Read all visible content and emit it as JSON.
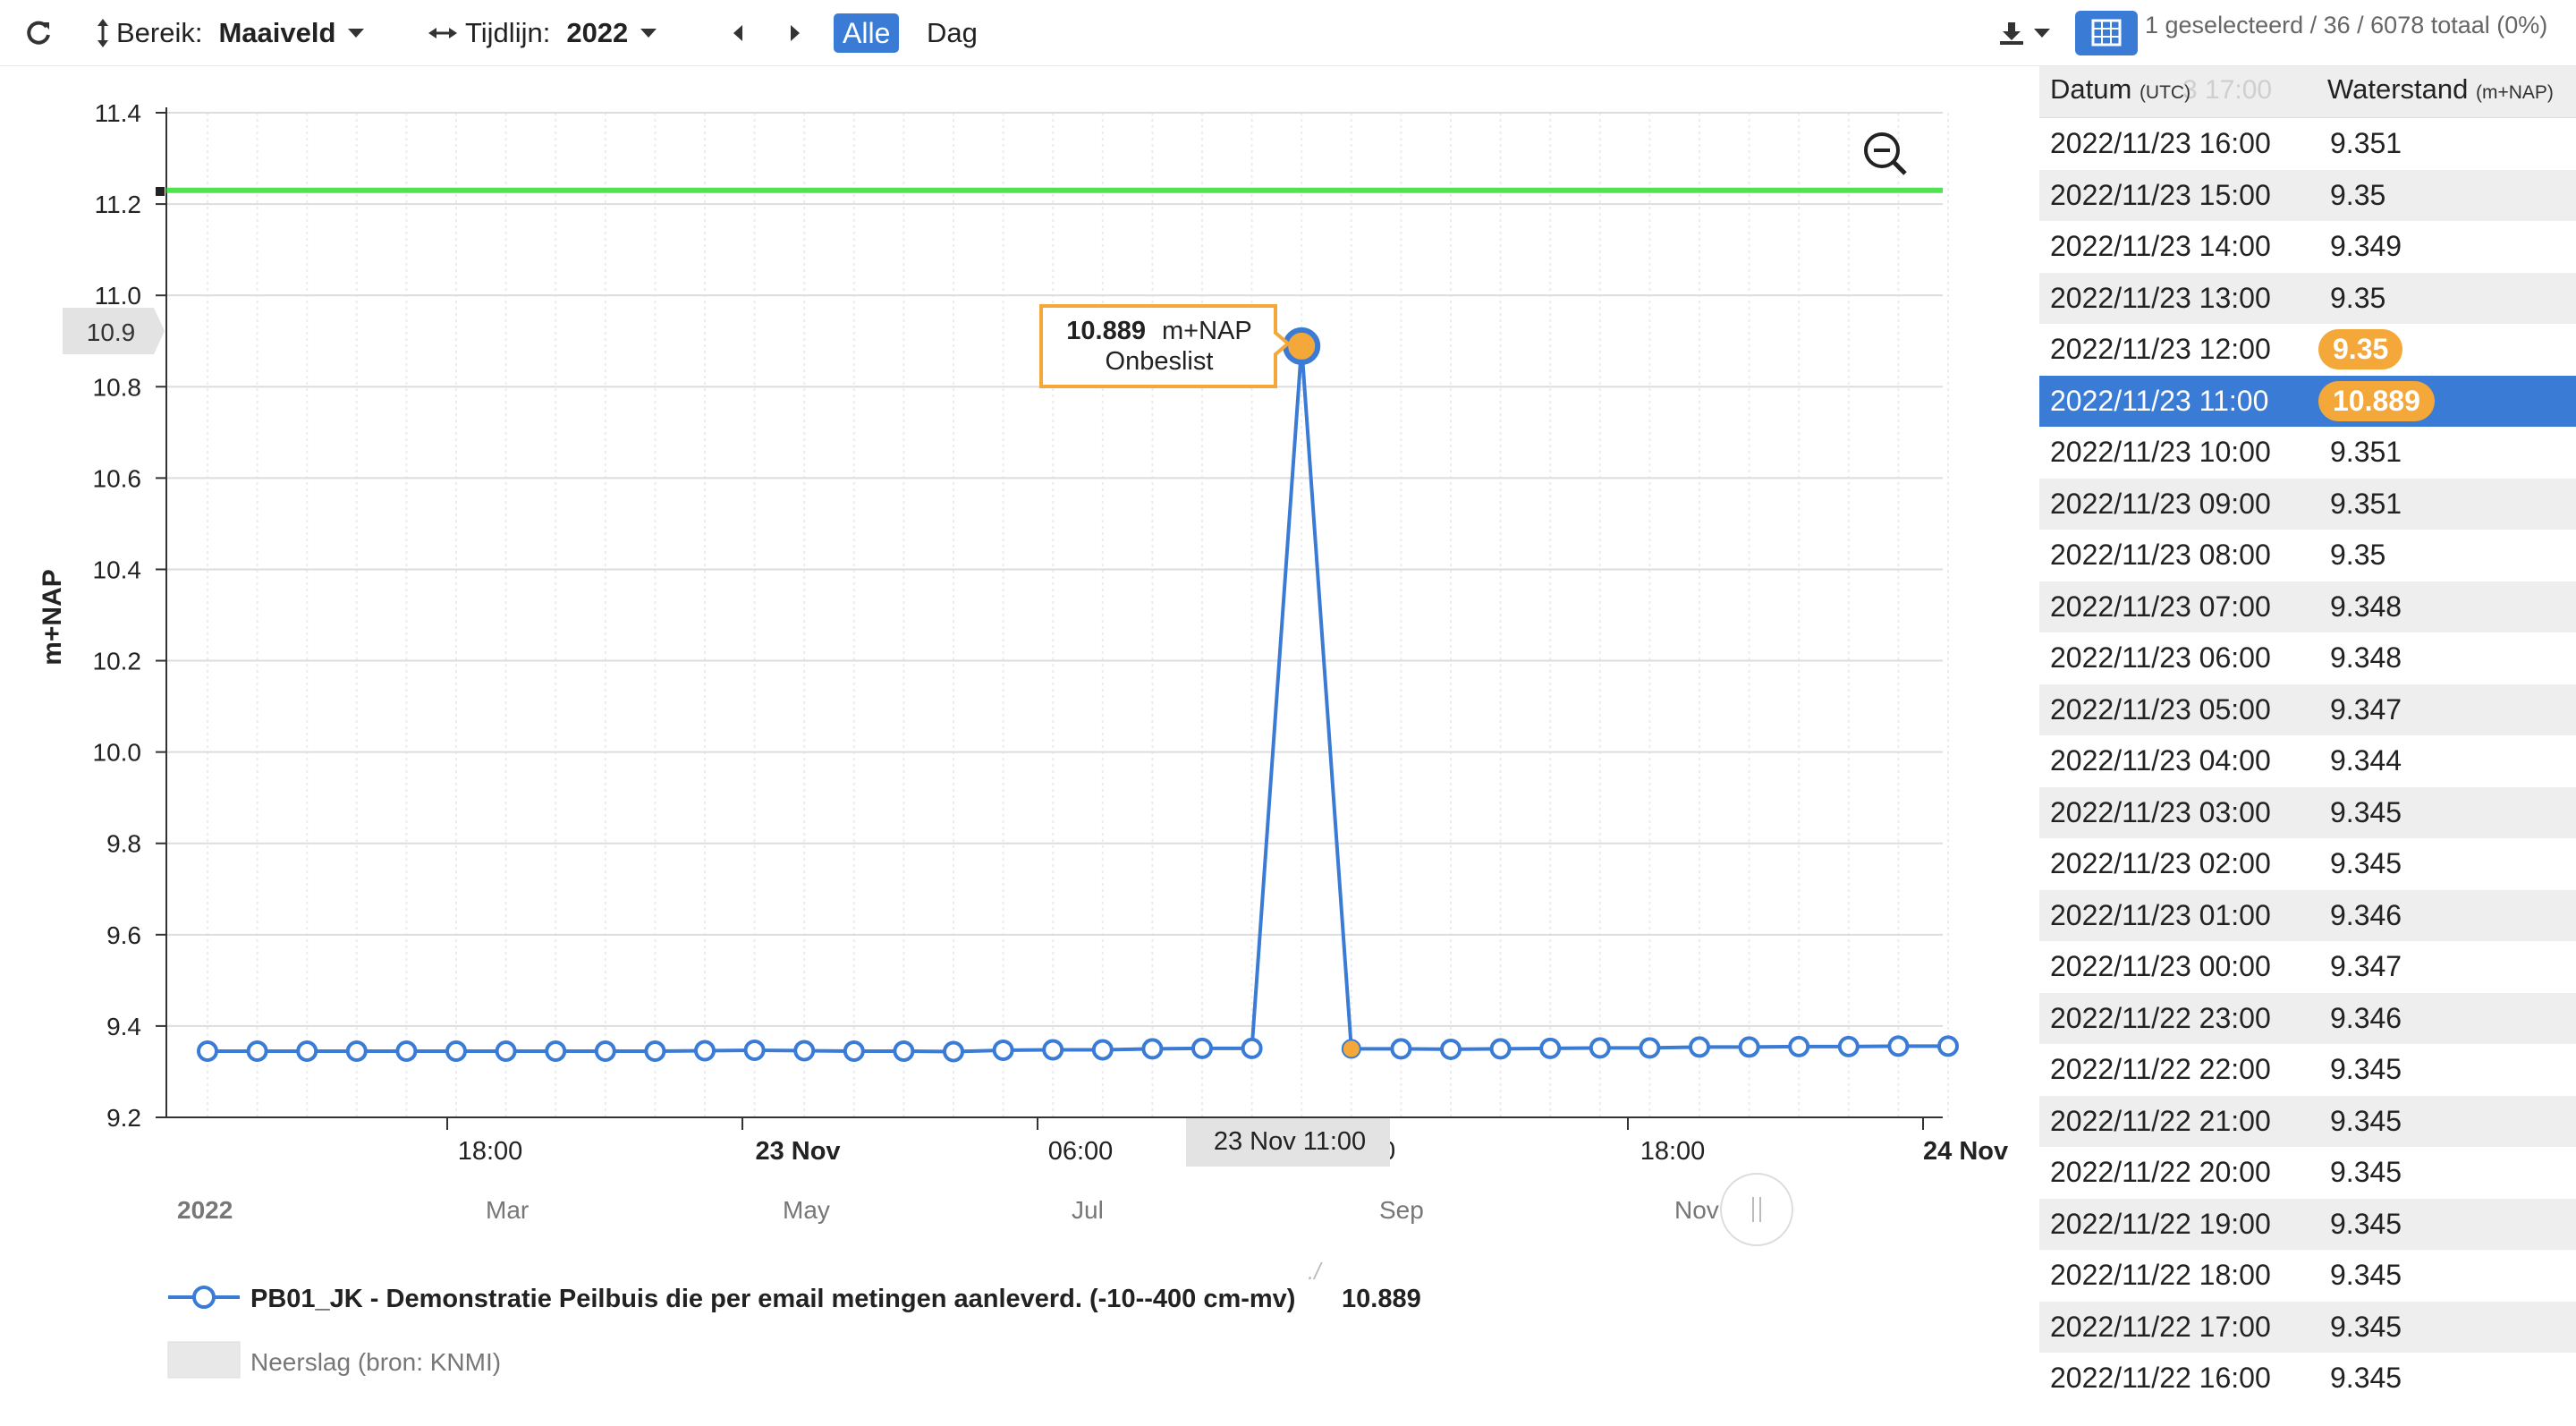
{
  "toolbar": {
    "refresh_icon": "refresh-icon",
    "range_label": "Bereik:",
    "range_value": "Maaiveld",
    "timeline_label": "Tijdlijn:",
    "timeline_value": "2022",
    "all_label": "Alle",
    "day_label": "Dag",
    "selection_info": "1 geselecteerd / 36 / 6078 totaal (0%)"
  },
  "chart": {
    "ylabel": "m+NAP",
    "tooltip_value": "10.889",
    "tooltip_unit": "m+NAP",
    "tooltip_status": "Onbeslist",
    "crosshair_x_label": "23 Nov 11:00",
    "crosshair_y_label": "10.9",
    "x_axis_ticks": [
      {
        "label": "18:00",
        "bold": false
      },
      {
        "label": "23 Nov",
        "bold": true
      },
      {
        "label": "06:00",
        "bold": false
      },
      {
        "label": "00",
        "bold": false
      },
      {
        "label": "18:00",
        "bold": false
      },
      {
        "label": "24 Nov",
        "bold": true
      }
    ],
    "navigator_labels": [
      "2022",
      "Mar",
      "May",
      "Jul",
      "Sep",
      "Nov"
    ],
    "legend_series": "PB01_JK - Demonstratie Peilbuis die per email metingen aanleverd. (-10--400 cm-mv)",
    "legend_overlay": "10.889",
    "legend_rain": "Neerslag (bron: KNMI)",
    "colors": {
      "series": "#3a7bd5",
      "threshold": "#33dd33",
      "highlight": "#f4a83a"
    }
  },
  "chart_data": {
    "type": "line",
    "ylabel": "m+NAP",
    "ylim": [
      9.2,
      11.4
    ],
    "yticks": [
      9.2,
      9.4,
      9.6,
      9.8,
      10.0,
      10.2,
      10.4,
      10.6,
      10.8,
      11.0,
      11.2,
      11.4
    ],
    "threshold": 11.23,
    "grid": true,
    "legend_position": "bottom",
    "series": [
      {
        "name": "PB01_JK - Demonstratie Peilbuis die per email metingen aanleverd. (-10--400 cm-mv)",
        "x": [
          "2022/11/22 13:00",
          "2022/11/22 14:00",
          "2022/11/22 15:00",
          "2022/11/22 16:00",
          "2022/11/22 17:00",
          "2022/11/22 18:00",
          "2022/11/22 19:00",
          "2022/11/22 20:00",
          "2022/11/22 21:00",
          "2022/11/22 22:00",
          "2022/11/22 23:00",
          "2022/11/23 00:00",
          "2022/11/23 01:00",
          "2022/11/23 02:00",
          "2022/11/23 03:00",
          "2022/11/23 04:00",
          "2022/11/23 05:00",
          "2022/11/23 06:00",
          "2022/11/23 07:00",
          "2022/11/23 08:00",
          "2022/11/23 09:00",
          "2022/11/23 10:00",
          "2022/11/23 11:00",
          "2022/11/23 12:00",
          "2022/11/23 13:00",
          "2022/11/23 14:00",
          "2022/11/23 15:00",
          "2022/11/23 16:00",
          "2022/11/23 17:00",
          "2022/11/23 18:00",
          "2022/11/23 19:00",
          "2022/11/23 20:00",
          "2022/11/23 21:00",
          "2022/11/23 22:00",
          "2022/11/23 23:00",
          "2022/11/24 00:00"
        ],
        "values": [
          9.345,
          9.345,
          9.345,
          9.345,
          9.345,
          9.345,
          9.345,
          9.345,
          9.345,
          9.345,
          9.346,
          9.347,
          9.346,
          9.345,
          9.345,
          9.344,
          9.347,
          9.348,
          9.348,
          9.35,
          9.351,
          9.351,
          10.889,
          9.35,
          9.35,
          9.349,
          9.35,
          9.351,
          9.352,
          9.352,
          9.354,
          9.354,
          9.355,
          9.355,
          9.356,
          9.356
        ]
      }
    ],
    "selected_x": "2022/11/23 11:00",
    "highlight_x": "2022/11/23 12:00"
  },
  "table": {
    "col_date": "Datum",
    "col_date_unit": "(UTC)",
    "col_value": "Waterstand",
    "col_value_unit": "(m+NAP)",
    "ghost_header": "3 17:00",
    "rows": [
      {
        "date": "2022/11/23 16:00",
        "value": "9.351",
        "state": ""
      },
      {
        "date": "2022/11/23 15:00",
        "value": "9.35",
        "state": ""
      },
      {
        "date": "2022/11/23 14:00",
        "value": "9.349",
        "state": ""
      },
      {
        "date": "2022/11/23 13:00",
        "value": "9.35",
        "state": ""
      },
      {
        "date": "2022/11/23 12:00",
        "value": "9.35",
        "state": "flag"
      },
      {
        "date": "2022/11/23 11:00",
        "value": "10.889",
        "state": "selected"
      },
      {
        "date": "2022/11/23 10:00",
        "value": "9.351",
        "state": ""
      },
      {
        "date": "2022/11/23 09:00",
        "value": "9.351",
        "state": ""
      },
      {
        "date": "2022/11/23 08:00",
        "value": "9.35",
        "state": ""
      },
      {
        "date": "2022/11/23 07:00",
        "value": "9.348",
        "state": ""
      },
      {
        "date": "2022/11/23 06:00",
        "value": "9.348",
        "state": ""
      },
      {
        "date": "2022/11/23 05:00",
        "value": "9.347",
        "state": ""
      },
      {
        "date": "2022/11/23 04:00",
        "value": "9.344",
        "state": ""
      },
      {
        "date": "2022/11/23 03:00",
        "value": "9.345",
        "state": ""
      },
      {
        "date": "2022/11/23 02:00",
        "value": "9.345",
        "state": ""
      },
      {
        "date": "2022/11/23 01:00",
        "value": "9.346",
        "state": ""
      },
      {
        "date": "2022/11/23 00:00",
        "value": "9.347",
        "state": ""
      },
      {
        "date": "2022/11/22 23:00",
        "value": "9.346",
        "state": ""
      },
      {
        "date": "2022/11/22 22:00",
        "value": "9.345",
        "state": ""
      },
      {
        "date": "2022/11/22 21:00",
        "value": "9.345",
        "state": ""
      },
      {
        "date": "2022/11/22 20:00",
        "value": "9.345",
        "state": ""
      },
      {
        "date": "2022/11/22 19:00",
        "value": "9.345",
        "state": ""
      },
      {
        "date": "2022/11/22 18:00",
        "value": "9.345",
        "state": ""
      },
      {
        "date": "2022/11/22 17:00",
        "value": "9.345",
        "state": ""
      },
      {
        "date": "2022/11/22 16:00",
        "value": "9.345",
        "state": ""
      }
    ]
  }
}
